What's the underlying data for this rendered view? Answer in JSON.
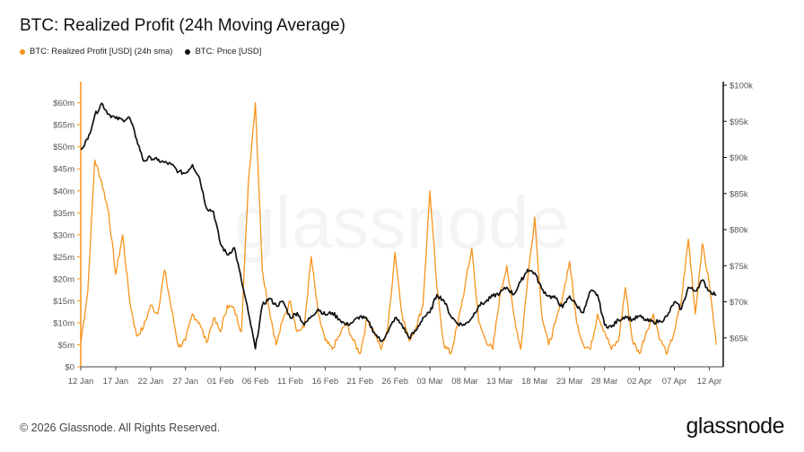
{
  "header": {
    "title": "BTC: Realized Profit (24h Moving Average)"
  },
  "legend": [
    {
      "label": "BTC: Realized Profit [USD] (24h sma)",
      "color": "#f7931a"
    },
    {
      "label": "BTC: Price [USD]",
      "color": "#111111"
    }
  ],
  "watermark": "glassnode",
  "footer": {
    "copyright": "© 2026 Glassnode. All Rights Reserved.",
    "brand": "glassnode"
  },
  "chart_data": {
    "type": "line",
    "title": "BTC: Realized Profit (24h Moving Average)",
    "x_axis": {
      "range": [
        "2026-01-12",
        "2026-04-14"
      ],
      "tick_labels": [
        "12 Jan",
        "17 Jan",
        "22 Jan",
        "27 Jan",
        "01 Feb",
        "06 Feb",
        "11 Feb",
        "16 Feb",
        "21 Feb",
        "26 Feb",
        "03 Mar",
        "08 Mar",
        "13 Mar",
        "18 Mar",
        "23 Mar",
        "28 Mar",
        "02 Apr",
        "07 Apr",
        "12 Apr"
      ]
    },
    "y_left": {
      "range": [
        0,
        64000000
      ],
      "tick_values": [
        0,
        5000000,
        10000000,
        15000000,
        20000000,
        25000000,
        30000000,
        35000000,
        40000000,
        45000000,
        50000000,
        55000000,
        60000000
      ],
      "tick_labels": [
        "$0",
        "$5m",
        "$10m",
        "$15m",
        "$20m",
        "$25m",
        "$30m",
        "$35m",
        "$40m",
        "$45m",
        "$50m",
        "$55m",
        "$60m"
      ]
    },
    "y_right": {
      "range": [
        61000,
        100000
      ],
      "tick_values": [
        65000,
        70000,
        75000,
        80000,
        85000,
        90000,
        95000,
        100000
      ],
      "tick_labels": [
        "$65k",
        "$70k",
        "$75k",
        "$80k",
        "$85k",
        "$90k",
        "$95k",
        "$100k"
      ]
    },
    "grid": false,
    "series": [
      {
        "name": "BTC: Realized Profit [USD] (24h sma)",
        "axis": "left",
        "color": "#f7931a",
        "points": [
          [
            "2026-01-12",
            5500000
          ],
          [
            "2026-01-13",
            17000000
          ],
          [
            "2026-01-14",
            47000000
          ],
          [
            "2026-01-15",
            42000000
          ],
          [
            "2026-01-16",
            35000000
          ],
          [
            "2026-01-17",
            21000000
          ],
          [
            "2026-01-18",
            30000000
          ],
          [
            "2026-01-19",
            15000000
          ],
          [
            "2026-01-20",
            7000000
          ],
          [
            "2026-01-21",
            9000000
          ],
          [
            "2026-01-22",
            14000000
          ],
          [
            "2026-01-23",
            12000000
          ],
          [
            "2026-01-24",
            22000000
          ],
          [
            "2026-01-25",
            13000000
          ],
          [
            "2026-01-26",
            4500000
          ],
          [
            "2026-01-27",
            6000000
          ],
          [
            "2026-01-28",
            12000000
          ],
          [
            "2026-01-29",
            10000000
          ],
          [
            "2026-01-30",
            5500000
          ],
          [
            "2026-01-31",
            11000000
          ],
          [
            "2026-02-01",
            8000000
          ],
          [
            "2026-02-02",
            14000000
          ],
          [
            "2026-02-03",
            13000000
          ],
          [
            "2026-02-04",
            8000000
          ],
          [
            "2026-02-05",
            42000000
          ],
          [
            "2026-02-06",
            60000000
          ],
          [
            "2026-02-07",
            22000000
          ],
          [
            "2026-02-08",
            13000000
          ],
          [
            "2026-02-09",
            5000000
          ],
          [
            "2026-02-10",
            11000000
          ],
          [
            "2026-02-11",
            15000000
          ],
          [
            "2026-02-12",
            8000000
          ],
          [
            "2026-02-13",
            9000000
          ],
          [
            "2026-02-14",
            25000000
          ],
          [
            "2026-02-15",
            12000000
          ],
          [
            "2026-02-16",
            6000000
          ],
          [
            "2026-02-17",
            4000000
          ],
          [
            "2026-02-18",
            7000000
          ],
          [
            "2026-02-19",
            10000000
          ],
          [
            "2026-02-20",
            6000000
          ],
          [
            "2026-02-21",
            3000000
          ],
          [
            "2026-02-22",
            11000000
          ],
          [
            "2026-02-23",
            8000000
          ],
          [
            "2026-02-24",
            4000000
          ],
          [
            "2026-02-25",
            9000000
          ],
          [
            "2026-02-26",
            26000000
          ],
          [
            "2026-02-27",
            12000000
          ],
          [
            "2026-02-28",
            6000000
          ],
          [
            "2026-03-01",
            9000000
          ],
          [
            "2026-03-02",
            14000000
          ],
          [
            "2026-03-03",
            40000000
          ],
          [
            "2026-03-04",
            18000000
          ],
          [
            "2026-03-05",
            5000000
          ],
          [
            "2026-03-06",
            3000000
          ],
          [
            "2026-03-07",
            10000000
          ],
          [
            "2026-03-08",
            18000000
          ],
          [
            "2026-03-09",
            27000000
          ],
          [
            "2026-03-10",
            10000000
          ],
          [
            "2026-03-11",
            6000000
          ],
          [
            "2026-03-12",
            4000000
          ],
          [
            "2026-03-13",
            16000000
          ],
          [
            "2026-03-14",
            23000000
          ],
          [
            "2026-03-15",
            12000000
          ],
          [
            "2026-03-16",
            4000000
          ],
          [
            "2026-03-17",
            20000000
          ],
          [
            "2026-03-18",
            34000000
          ],
          [
            "2026-03-19",
            12000000
          ],
          [
            "2026-03-20",
            5000000
          ],
          [
            "2026-03-21",
            10000000
          ],
          [
            "2026-03-22",
            16000000
          ],
          [
            "2026-03-23",
            24000000
          ],
          [
            "2026-03-24",
            10000000
          ],
          [
            "2026-03-25",
            5000000
          ],
          [
            "2026-03-26",
            4000000
          ],
          [
            "2026-03-27",
            12000000
          ],
          [
            "2026-03-28",
            8000000
          ],
          [
            "2026-03-29",
            4000000
          ],
          [
            "2026-03-30",
            6000000
          ],
          [
            "2026-03-31",
            18000000
          ],
          [
            "2026-04-01",
            6000000
          ],
          [
            "2026-04-02",
            3000000
          ],
          [
            "2026-04-03",
            8000000
          ],
          [
            "2026-04-04",
            12000000
          ],
          [
            "2026-04-05",
            6000000
          ],
          [
            "2026-04-06",
            3000000
          ],
          [
            "2026-04-07",
            8000000
          ],
          [
            "2026-04-08",
            15000000
          ],
          [
            "2026-04-09",
            29000000
          ],
          [
            "2026-04-10",
            12000000
          ],
          [
            "2026-04-11",
            28000000
          ],
          [
            "2026-04-12",
            19000000
          ],
          [
            "2026-04-13",
            5000000
          ]
        ]
      },
      {
        "name": "BTC: Price [USD]",
        "axis": "right",
        "color": "#111111",
        "points": [
          [
            "2026-01-12",
            91200
          ],
          [
            "2026-01-13",
            92500
          ],
          [
            "2026-01-14",
            95800
          ],
          [
            "2026-01-15",
            97500
          ],
          [
            "2026-01-16",
            96000
          ],
          [
            "2026-01-17",
            95400
          ],
          [
            "2026-01-18",
            95200
          ],
          [
            "2026-01-19",
            95500
          ],
          [
            "2026-01-20",
            92500
          ],
          [
            "2026-01-21",
            89500
          ],
          [
            "2026-01-22",
            90000
          ],
          [
            "2026-01-23",
            89600
          ],
          [
            "2026-01-24",
            89300
          ],
          [
            "2026-01-25",
            89000
          ],
          [
            "2026-01-26",
            88000
          ],
          [
            "2026-01-27",
            87800
          ],
          [
            "2026-01-28",
            89000
          ],
          [
            "2026-01-29",
            87200
          ],
          [
            "2026-01-30",
            83000
          ],
          [
            "2026-01-31",
            82500
          ],
          [
            "2026-02-01",
            78000
          ],
          [
            "2026-02-02",
            76500
          ],
          [
            "2026-02-03",
            77500
          ],
          [
            "2026-02-04",
            73000
          ],
          [
            "2026-02-05",
            68500
          ],
          [
            "2026-02-06",
            63500
          ],
          [
            "2026-02-07",
            69500
          ],
          [
            "2026-02-08",
            70500
          ],
          [
            "2026-02-09",
            69500
          ],
          [
            "2026-02-10",
            70000
          ],
          [
            "2026-02-11",
            67800
          ],
          [
            "2026-02-12",
            68500
          ],
          [
            "2026-02-13",
            66800
          ],
          [
            "2026-02-14",
            68000
          ],
          [
            "2026-02-15",
            69000
          ],
          [
            "2026-02-16",
            68200
          ],
          [
            "2026-02-17",
            68500
          ],
          [
            "2026-02-18",
            67600
          ],
          [
            "2026-02-19",
            66800
          ],
          [
            "2026-02-20",
            67200
          ],
          [
            "2026-02-21",
            68000
          ],
          [
            "2026-02-22",
            67500
          ],
          [
            "2026-02-23",
            65800
          ],
          [
            "2026-02-24",
            64500
          ],
          [
            "2026-02-25",
            65800
          ],
          [
            "2026-02-26",
            67800
          ],
          [
            "2026-02-27",
            66800
          ],
          [
            "2026-02-28",
            65000
          ],
          [
            "2026-03-01",
            66000
          ],
          [
            "2026-03-02",
            67800
          ],
          [
            "2026-03-03",
            68500
          ],
          [
            "2026-03-04",
            71000
          ],
          [
            "2026-03-05",
            70200
          ],
          [
            "2026-03-06",
            68000
          ],
          [
            "2026-03-07",
            67000
          ],
          [
            "2026-03-08",
            66800
          ],
          [
            "2026-03-09",
            67800
          ],
          [
            "2026-03-10",
            69500
          ],
          [
            "2026-03-11",
            70000
          ],
          [
            "2026-03-12",
            70800
          ],
          [
            "2026-03-13",
            71200
          ],
          [
            "2026-03-14",
            72000
          ],
          [
            "2026-03-15",
            71000
          ],
          [
            "2026-03-16",
            72800
          ],
          [
            "2026-03-17",
            74500
          ],
          [
            "2026-03-18",
            74000
          ],
          [
            "2026-03-19",
            71800
          ],
          [
            "2026-03-20",
            70800
          ],
          [
            "2026-03-21",
            70500
          ],
          [
            "2026-03-22",
            69200
          ],
          [
            "2026-03-23",
            70800
          ],
          [
            "2026-03-24",
            69500
          ],
          [
            "2026-03-25",
            68500
          ],
          [
            "2026-03-26",
            71500
          ],
          [
            "2026-03-27",
            71000
          ],
          [
            "2026-03-28",
            66800
          ],
          [
            "2026-03-29",
            66500
          ],
          [
            "2026-03-30",
            67500
          ],
          [
            "2026-03-31",
            68000
          ],
          [
            "2026-04-01",
            67500
          ],
          [
            "2026-04-02",
            68000
          ],
          [
            "2026-04-03",
            67400
          ],
          [
            "2026-04-04",
            67200
          ],
          [
            "2026-04-05",
            67300
          ],
          [
            "2026-04-06",
            68000
          ],
          [
            "2026-04-07",
            70000
          ],
          [
            "2026-04-08",
            69000
          ],
          [
            "2026-04-09",
            72000
          ],
          [
            "2026-04-10",
            71500
          ],
          [
            "2026-04-11",
            73000
          ],
          [
            "2026-04-12",
            71500
          ],
          [
            "2026-04-13",
            71000
          ]
        ]
      }
    ]
  }
}
